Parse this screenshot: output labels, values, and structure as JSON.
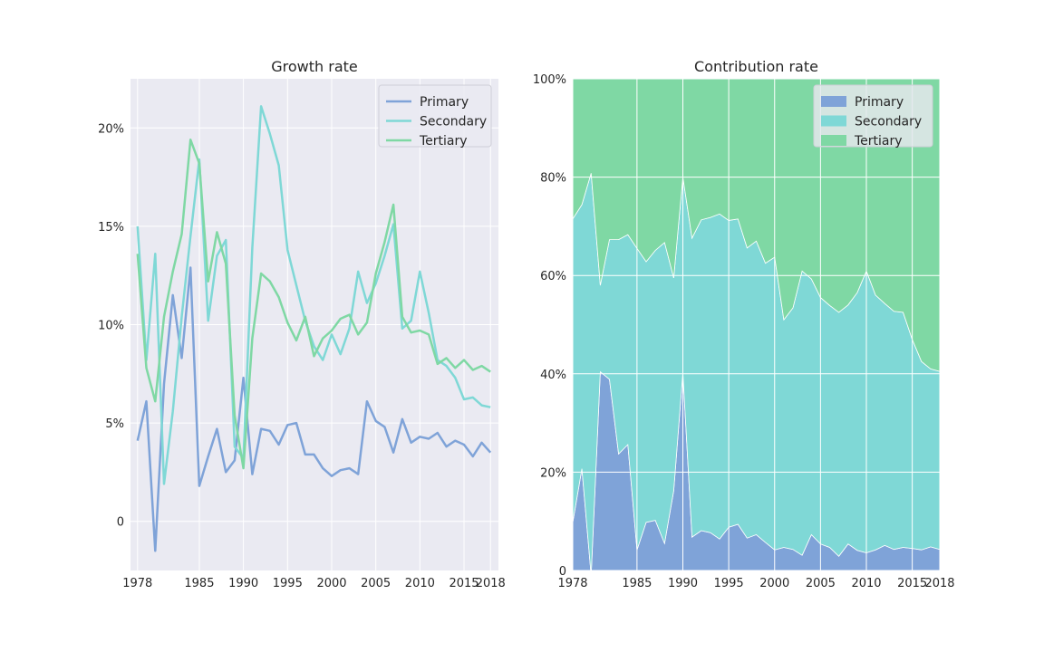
{
  "chart_data": [
    {
      "type": "line",
      "title": "Growth rate",
      "xlabel": "",
      "ylabel": "",
      "xlim": [
        1977.2,
        2018.9
      ],
      "ylim": [
        -0.025,
        0.225
      ],
      "yticks": [
        {
          "value": 0,
          "label": "0"
        },
        {
          "value": 0.05,
          "label": "5%"
        },
        {
          "value": 0.1,
          "label": "10%"
        },
        {
          "value": 0.15,
          "label": "15%"
        },
        {
          "value": 0.2,
          "label": "20%"
        }
      ],
      "xticks": [
        {
          "value": 1978,
          "label": "1978"
        },
        {
          "value": 1985,
          "label": "1985"
        },
        {
          "value": 1990,
          "label": "1990"
        },
        {
          "value": 1995,
          "label": "1995"
        },
        {
          "value": 2000,
          "label": "2000"
        },
        {
          "value": 2005,
          "label": "2005"
        },
        {
          "value": 2010,
          "label": "2010"
        },
        {
          "value": 2015,
          "label": "2015"
        },
        {
          "value": 2018,
          "label": "2018"
        }
      ],
      "grid": true,
      "legend": "top-right",
      "x": [
        1978,
        1979,
        1980,
        1981,
        1982,
        1983,
        1984,
        1985,
        1986,
        1987,
        1988,
        1989,
        1990,
        1991,
        1992,
        1993,
        1994,
        1995,
        1996,
        1997,
        1998,
        1999,
        2000,
        2001,
        2002,
        2003,
        2004,
        2005,
        2006,
        2007,
        2008,
        2009,
        2010,
        2011,
        2012,
        2013,
        2014,
        2015,
        2016,
        2017,
        2018
      ],
      "series": [
        {
          "name": "Primary",
          "color": "#7fa3d8",
          "values": [
            0.041,
            0.061,
            -0.015,
            0.07,
            0.115,
            0.083,
            0.129,
            0.018,
            0.033,
            0.047,
            0.025,
            0.031,
            0.073,
            0.024,
            0.047,
            0.046,
            0.039,
            0.049,
            0.05,
            0.034,
            0.034,
            0.027,
            0.023,
            0.026,
            0.027,
            0.024,
            0.061,
            0.051,
            0.048,
            0.035,
            0.052,
            0.04,
            0.043,
            0.042,
            0.045,
            0.038,
            0.041,
            0.039,
            0.033,
            0.04,
            0.035
          ]
        },
        {
          "name": "Secondary",
          "color": "#7fd8d6",
          "values": [
            0.15,
            0.082,
            0.136,
            0.019,
            0.056,
            0.104,
            0.145,
            0.184,
            0.102,
            0.135,
            0.143,
            0.038,
            0.032,
            0.139,
            0.211,
            0.197,
            0.181,
            0.138,
            0.12,
            0.102,
            0.089,
            0.082,
            0.095,
            0.085,
            0.098,
            0.127,
            0.111,
            0.121,
            0.135,
            0.151,
            0.098,
            0.102,
            0.127,
            0.106,
            0.082,
            0.079,
            0.073,
            0.062,
            0.063,
            0.059,
            0.058
          ]
        },
        {
          "name": "Tertiary",
          "color": "#7fd8a4",
          "values": [
            0.136,
            0.078,
            0.061,
            0.104,
            0.127,
            0.146,
            0.194,
            0.182,
            0.122,
            0.147,
            0.131,
            0.054,
            0.027,
            0.093,
            0.126,
            0.122,
            0.114,
            0.101,
            0.092,
            0.104,
            0.084,
            0.093,
            0.097,
            0.103,
            0.105,
            0.095,
            0.101,
            0.126,
            0.142,
            0.161,
            0.104,
            0.096,
            0.097,
            0.095,
            0.08,
            0.083,
            0.078,
            0.082,
            0.077,
            0.079,
            0.076
          ]
        }
      ]
    },
    {
      "type": "area",
      "stacked": true,
      "title": "Contribution rate",
      "xlabel": "",
      "ylabel": "",
      "xlim": [
        1978,
        2018
      ],
      "ylim": [
        0,
        1
      ],
      "yticks": [
        {
          "value": 0,
          "label": "0"
        },
        {
          "value": 0.2,
          "label": "20%"
        },
        {
          "value": 0.4,
          "label": "40%"
        },
        {
          "value": 0.6,
          "label": "60%"
        },
        {
          "value": 0.8,
          "label": "80%"
        },
        {
          "value": 1.0,
          "label": "100%"
        }
      ],
      "xticks": [
        {
          "value": 1978,
          "label": "1978"
        },
        {
          "value": 1985,
          "label": "1985"
        },
        {
          "value": 1990,
          "label": "1990"
        },
        {
          "value": 1995,
          "label": "1995"
        },
        {
          "value": 2000,
          "label": "2000"
        },
        {
          "value": 2005,
          "label": "2005"
        },
        {
          "value": 2010,
          "label": "2010"
        },
        {
          "value": 2015,
          "label": "2015"
        },
        {
          "value": 2018,
          "label": "2018"
        }
      ],
      "grid": true,
      "legend": "top-right",
      "x": [
        1978,
        1979,
        1980,
        1981,
        1982,
        1983,
        1984,
        1985,
        1986,
        1987,
        1988,
        1989,
        1990,
        1991,
        1992,
        1993,
        1994,
        1995,
        1996,
        1997,
        1998,
        1999,
        2000,
        2001,
        2002,
        2003,
        2004,
        2005,
        2006,
        2007,
        2008,
        2009,
        2010,
        2011,
        2012,
        2013,
        2014,
        2015,
        2016,
        2017,
        2018
      ],
      "series": [
        {
          "name": "Primary",
          "color": "#7fa3d8",
          "values": [
            0.098,
            0.207,
            -0.01,
            0.404,
            0.389,
            0.237,
            0.256,
            0.042,
            0.098,
            0.102,
            0.055,
            0.162,
            0.403,
            0.068,
            0.081,
            0.077,
            0.064,
            0.088,
            0.094,
            0.066,
            0.073,
            0.057,
            0.042,
            0.047,
            0.043,
            0.031,
            0.073,
            0.054,
            0.047,
            0.029,
            0.054,
            0.041,
            0.036,
            0.042,
            0.051,
            0.043,
            0.047,
            0.045,
            0.042,
            0.048,
            0.043
          ]
        },
        {
          "name": "Secondary",
          "color": "#7fd8d6",
          "values": [
            0.617,
            0.537,
            0.818,
            0.176,
            0.284,
            0.436,
            0.427,
            0.613,
            0.53,
            0.549,
            0.612,
            0.433,
            0.397,
            0.608,
            0.632,
            0.641,
            0.661,
            0.624,
            0.621,
            0.59,
            0.597,
            0.568,
            0.595,
            0.463,
            0.491,
            0.578,
            0.52,
            0.501,
            0.492,
            0.496,
            0.486,
            0.524,
            0.573,
            0.518,
            0.492,
            0.484,
            0.478,
            0.425,
            0.383,
            0.362,
            0.362
          ]
        },
        {
          "name": "Tertiary",
          "color": "#7fd8a4",
          "values": [
            0.285,
            0.256,
            0.192,
            0.42,
            0.327,
            0.327,
            0.317,
            0.345,
            0.372,
            0.349,
            0.333,
            0.405,
            0.2,
            0.324,
            0.287,
            0.282,
            0.275,
            0.288,
            0.285,
            0.344,
            0.33,
            0.375,
            0.363,
            0.49,
            0.466,
            0.391,
            0.407,
            0.445,
            0.461,
            0.475,
            0.46,
            0.435,
            0.391,
            0.44,
            0.457,
            0.473,
            0.475,
            0.53,
            0.575,
            0.59,
            0.595
          ]
        }
      ]
    }
  ]
}
